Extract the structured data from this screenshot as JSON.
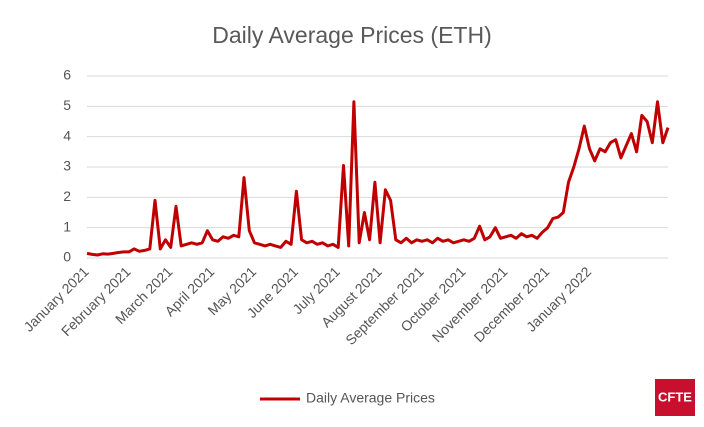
{
  "chart_data": {
    "type": "line",
    "title": "Daily Average Prices (ETH)",
    "categories": [
      "January 2021",
      null,
      null,
      null,
      null,
      null,
      null,
      null,
      "February 2021",
      null,
      null,
      null,
      null,
      null,
      null,
      null,
      "March 2021",
      null,
      null,
      null,
      null,
      null,
      null,
      null,
      "April 2021",
      null,
      null,
      null,
      null,
      null,
      null,
      null,
      "May 2021",
      null,
      null,
      null,
      null,
      null,
      null,
      null,
      "June 2021",
      null,
      null,
      null,
      null,
      null,
      null,
      null,
      "July 2021",
      null,
      null,
      null,
      null,
      null,
      null,
      null,
      "August 2021",
      null,
      null,
      null,
      null,
      null,
      null,
      null,
      "September 2021",
      null,
      null,
      null,
      null,
      null,
      null,
      null,
      "October 2021",
      null,
      null,
      null,
      null,
      null,
      null,
      null,
      "November 2021",
      null,
      null,
      null,
      null,
      null,
      null,
      null,
      "December 2021",
      null,
      null,
      null,
      null,
      null,
      null,
      null,
      "January 2022",
      null,
      null,
      null,
      null,
      null,
      null,
      null,
      null,
      null,
      null,
      null,
      null,
      null,
      null,
      null
    ],
    "series": [
      {
        "name": "Daily Average Prices",
        "color": "#c00000",
        "values": [
          0.15,
          0.12,
          0.1,
          0.14,
          0.13,
          0.15,
          0.18,
          0.2,
          0.2,
          0.3,
          0.22,
          0.25,
          0.3,
          1.9,
          0.3,
          0.6,
          0.35,
          1.7,
          0.4,
          0.45,
          0.5,
          0.45,
          0.5,
          0.9,
          0.6,
          0.55,
          0.7,
          0.65,
          0.75,
          0.7,
          2.65,
          0.9,
          0.5,
          0.45,
          0.4,
          0.45,
          0.4,
          0.35,
          0.55,
          0.45,
          2.2,
          0.6,
          0.5,
          0.55,
          0.45,
          0.5,
          0.4,
          0.45,
          0.35,
          3.05,
          0.4,
          5.15,
          0.5,
          1.5,
          0.6,
          2.5,
          0.5,
          2.25,
          1.9,
          0.6,
          0.5,
          0.65,
          0.5,
          0.6,
          0.55,
          0.6,
          0.5,
          0.65,
          0.55,
          0.6,
          0.5,
          0.55,
          0.6,
          0.55,
          0.65,
          1.05,
          0.6,
          0.7,
          1.0,
          0.65,
          0.7,
          0.75,
          0.65,
          0.8,
          0.7,
          0.75,
          0.65,
          0.85,
          1.0,
          1.3,
          1.35,
          1.5,
          2.5,
          3.0,
          3.6,
          4.35,
          3.6,
          3.2,
          3.6,
          3.5,
          3.8,
          3.9,
          3.3,
          3.7,
          4.1,
          3.5,
          4.7,
          4.5,
          3.8,
          5.15,
          3.8,
          4.3
        ]
      }
    ],
    "ylim": [
      0,
      6
    ],
    "yticks": [
      0,
      1,
      2,
      3,
      4,
      5,
      6
    ],
    "grid": true,
    "legend": "bottom"
  },
  "logo": "CFTE"
}
